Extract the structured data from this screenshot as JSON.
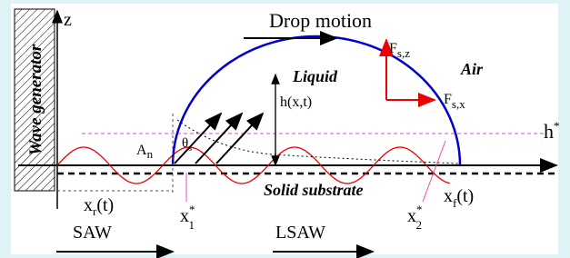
{
  "labels": {
    "wave_generator": "Wave generator",
    "z": "z",
    "drop_motion": "Drop motion",
    "liquid": "Liquid",
    "air": "Air",
    "height": "h(x,t)",
    "h_star": {
      "base": "h",
      "sup": "*"
    },
    "amplitude": {
      "base": "A",
      "sub": "n"
    },
    "theta": {
      "base": "θ",
      "sub": "s"
    },
    "force_z": {
      "base": "F",
      "sub": "s,z"
    },
    "force_x": {
      "base": "F",
      "sub": "s,x"
    },
    "x_r": {
      "base": "x",
      "sub": "r",
      "rest": "(t)"
    },
    "x_f": {
      "base": "x",
      "sub": "f",
      "rest": "(t)"
    },
    "x_1": {
      "base": "x",
      "sup": "*",
      "sub": "1"
    },
    "x_2": {
      "base": "x",
      "sup": "*",
      "sub": "2"
    },
    "substrate": "Solid substrate",
    "saw": "SAW",
    "lsaw": "LSAW"
  }
}
